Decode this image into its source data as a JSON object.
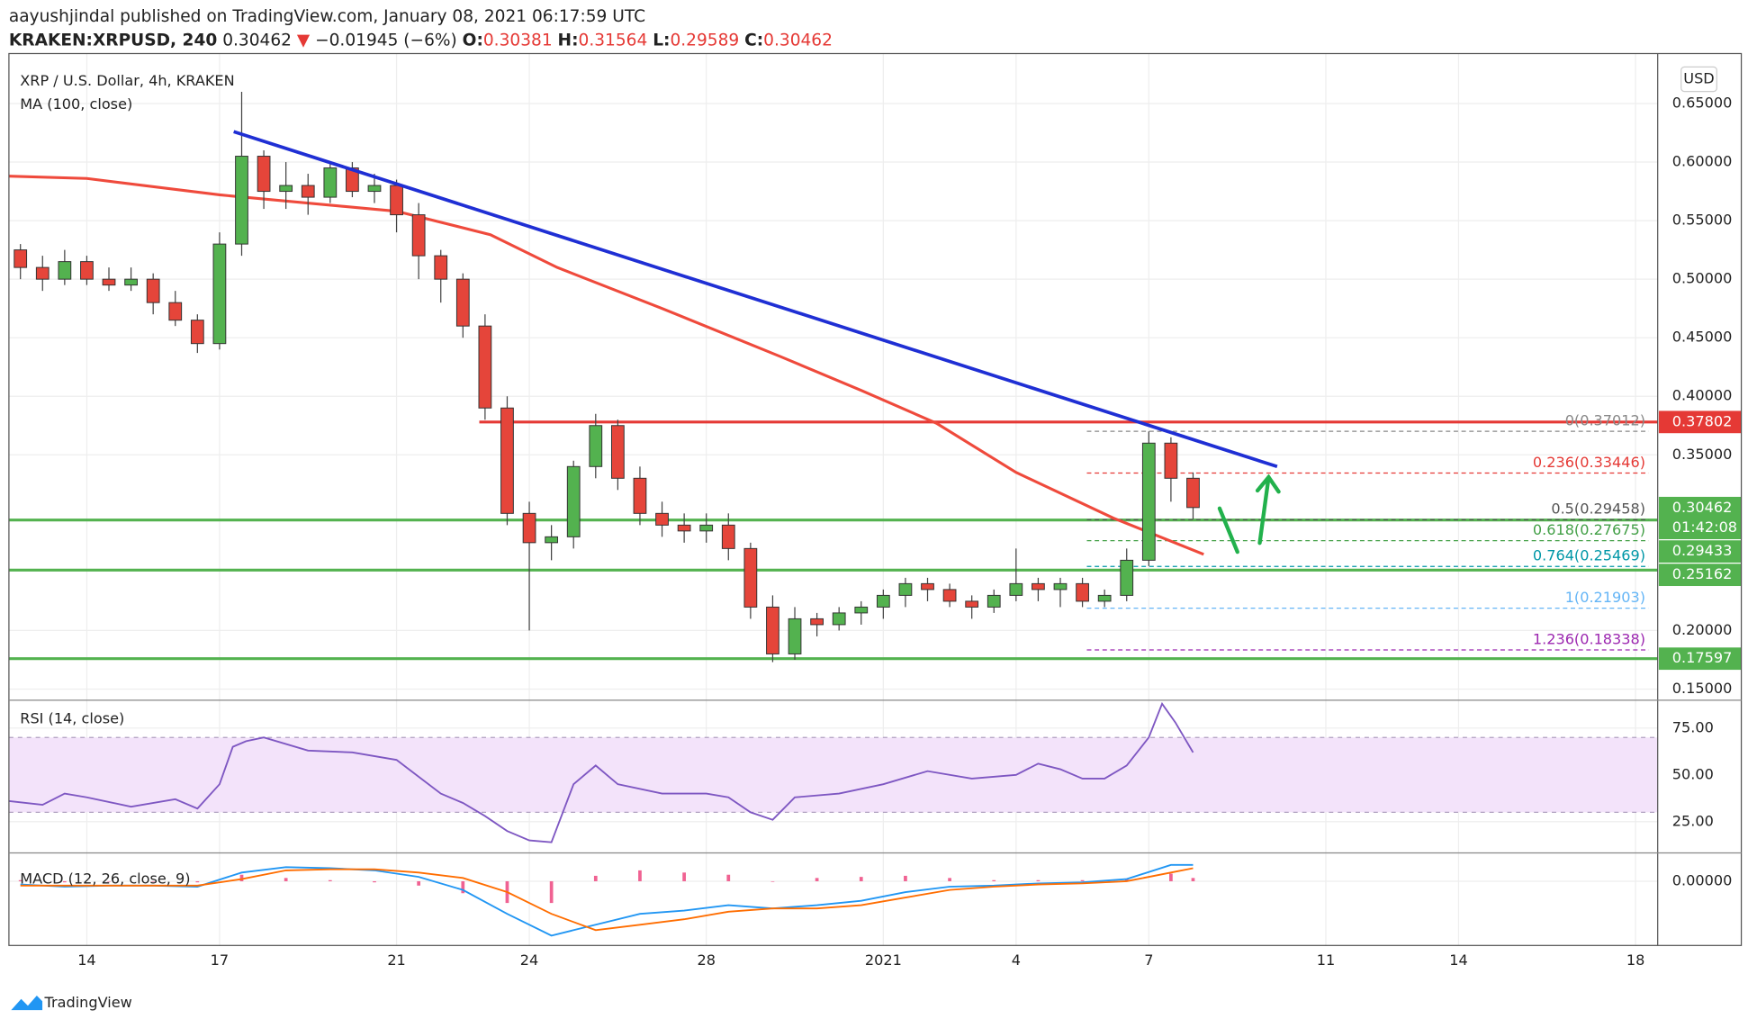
{
  "header": {
    "published": "aayushjindal published on TradingView.com, January 08, 2021 06:17:59 UTC",
    "symbol": "KRAKEN:XRPUSD, 240",
    "last": "0.30462",
    "arrow": "▼",
    "change": "−0.01945 (−6%)",
    "ohlc": [
      {
        "label": "O:",
        "value": "0.30381"
      },
      {
        "label": "H:",
        "value": "0.31564"
      },
      {
        "label": "L:",
        "value": "0.29589"
      },
      {
        "label": "C:",
        "value": "0.30462"
      }
    ]
  },
  "footer": {
    "brand": "TradingView"
  },
  "chart_data": [
    {
      "type": "candlestick",
      "title": "XRP / U.S. Dollar, 4h, KRAKEN",
      "currency": "USD",
      "up_color": "#53b24f",
      "down_color": "#e5453a",
      "grid": true,
      "xlim": [
        12.24,
        49.5
      ],
      "ylim": [
        0.1405,
        0.686
      ],
      "xticks": [
        14,
        17,
        21,
        24,
        28,
        {
          "value": 32,
          "label": "2021"
        },
        {
          "value": 35,
          "label": "4"
        },
        {
          "value": 38,
          "label": "7"
        },
        {
          "value": 42,
          "label": "11"
        },
        {
          "value": 45,
          "label": "14"
        },
        {
          "value": 49,
          "label": "18"
        }
      ],
      "yticks": [
        {
          "value": 0.65,
          "label": "0.65000"
        },
        {
          "value": 0.6,
          "label": "0.60000"
        },
        {
          "value": 0.55,
          "label": "0.55000"
        },
        {
          "value": 0.5,
          "label": "0.50000"
        },
        {
          "value": 0.45,
          "label": "0.45000"
        },
        {
          "value": 0.4,
          "label": "0.40000"
        },
        {
          "value": 0.35,
          "label": "0.35000"
        },
        {
          "value": 0.2,
          "label": "0.20000"
        },
        {
          "value": 0.15,
          "label": "0.15000"
        }
      ],
      "x": [
        12.5,
        13,
        13.5,
        14,
        14.5,
        15,
        15.5,
        16,
        16.5,
        17,
        17.5,
        18,
        18.5,
        19,
        19.5,
        20,
        20.5,
        21,
        21.5,
        22,
        22.5,
        23,
        23.5,
        24,
        24.5,
        25,
        25.5,
        26,
        26.5,
        27,
        27.5,
        28,
        28.5,
        29,
        29.5,
        30,
        30.5,
        31,
        31.5,
        32,
        32.5,
        33,
        33.5,
        34,
        34.5,
        35,
        35.5,
        36,
        36.5,
        37,
        37.5,
        38,
        38.5,
        39
      ],
      "open": [
        0.525,
        0.51,
        0.5,
        0.515,
        0.5,
        0.495,
        0.5,
        0.48,
        0.465,
        0.445,
        0.53,
        0.605,
        0.575,
        0.58,
        0.57,
        0.595,
        0.575,
        0.58,
        0.555,
        0.52,
        0.5,
        0.46,
        0.39,
        0.3,
        0.275,
        0.28,
        0.34,
        0.375,
        0.33,
        0.3,
        0.29,
        0.285,
        0.29,
        0.27,
        0.22,
        0.18,
        0.21,
        0.205,
        0.215,
        0.22,
        0.23,
        0.24,
        0.235,
        0.225,
        0.22,
        0.23,
        0.24,
        0.235,
        0.24,
        0.225,
        0.23,
        0.26,
        0.36,
        0.33
      ],
      "high": [
        0.53,
        0.52,
        0.525,
        0.52,
        0.51,
        0.51,
        0.505,
        0.49,
        0.47,
        0.54,
        0.66,
        0.61,
        0.6,
        0.59,
        0.6,
        0.6,
        0.59,
        0.585,
        0.565,
        0.525,
        0.505,
        0.47,
        0.4,
        0.31,
        0.29,
        0.345,
        0.385,
        0.38,
        0.34,
        0.31,
        0.3,
        0.3,
        0.3,
        0.275,
        0.23,
        0.22,
        0.215,
        0.22,
        0.225,
        0.235,
        0.245,
        0.245,
        0.24,
        0.23,
        0.235,
        0.27,
        0.245,
        0.245,
        0.245,
        0.235,
        0.27,
        0.37,
        0.365,
        0.335
      ],
      "low": [
        0.5,
        0.49,
        0.495,
        0.495,
        0.49,
        0.49,
        0.47,
        0.46,
        0.437,
        0.44,
        0.52,
        0.56,
        0.56,
        0.555,
        0.565,
        0.57,
        0.565,
        0.54,
        0.5,
        0.48,
        0.45,
        0.38,
        0.29,
        0.2,
        0.26,
        0.27,
        0.33,
        0.32,
        0.29,
        0.28,
        0.275,
        0.275,
        0.26,
        0.21,
        0.173,
        0.175,
        0.195,
        0.2,
        0.205,
        0.21,
        0.22,
        0.225,
        0.22,
        0.21,
        0.215,
        0.225,
        0.225,
        0.22,
        0.22,
        0.22,
        0.225,
        0.255,
        0.31,
        0.295
      ],
      "close": [
        0.51,
        0.5,
        0.515,
        0.5,
        0.495,
        0.5,
        0.48,
        0.465,
        0.445,
        0.53,
        0.605,
        0.575,
        0.58,
        0.57,
        0.595,
        0.575,
        0.58,
        0.555,
        0.52,
        0.5,
        0.46,
        0.39,
        0.3,
        0.275,
        0.28,
        0.34,
        0.375,
        0.33,
        0.3,
        0.29,
        0.285,
        0.29,
        0.27,
        0.22,
        0.18,
        0.21,
        0.205,
        0.215,
        0.22,
        0.23,
        0.24,
        0.235,
        0.225,
        0.22,
        0.23,
        0.24,
        0.235,
        0.24,
        0.225,
        0.23,
        0.26,
        0.36,
        0.33,
        0.305
      ],
      "ma": {
        "name": "MA (100, close)",
        "color": "#ef4a3c",
        "x": [
          12.24,
          14,
          17,
          21,
          23.12,
          24.63,
          27,
          29.67,
          31.5,
          33.2,
          35,
          37.2,
          39.24
        ],
        "values": [
          0.588,
          0.586,
          0.572,
          0.558,
          0.538,
          0.51,
          0.475,
          0.434,
          0.405,
          0.377,
          0.335,
          0.296,
          0.265
        ]
      },
      "trendline": {
        "color": "#1f2fd4",
        "x": [
          17.32,
          40.9
        ],
        "values": [
          0.626,
          0.34
        ]
      },
      "levels": [
        {
          "value": 0.37802,
          "label": "0.37802",
          "color": "#e53935",
          "from": 22.87
        },
        {
          "value": 0.30462,
          "label": "0.30462",
          "color": "#53b24f",
          "countdown": "01:42:08"
        },
        {
          "value": 0.29433,
          "label": "0.29433",
          "color": "#53b24f",
          "from": 12.24
        },
        {
          "value": 0.25162,
          "label": "0.25162",
          "color": "#53b24f",
          "from": 12.24
        },
        {
          "value": 0.17597,
          "label": "0.17597",
          "color": "#53b24f",
          "from": 12.24
        }
      ],
      "fib": {
        "from": 36.6,
        "to": 49.3,
        "levels": [
          {
            "value": 0.37012,
            "label": "0(0.37012)",
            "color": "#888888"
          },
          {
            "value": 0.33446,
            "label": "0.236(0.33446)",
            "color": "#e53935"
          },
          {
            "value": 0.29458,
            "label": "0.5(0.29458)",
            "color": "#555555"
          },
          {
            "value": 0.27675,
            "label": "0.618(0.27675)",
            "color": "#43a047"
          },
          {
            "value": 0.25469,
            "label": "0.764(0.25469)",
            "color": "#0097a7"
          },
          {
            "value": 0.21903,
            "label": "1(0.21903)",
            "color": "#64b5f6"
          },
          {
            "value": 0.18338,
            "label": "1.236(0.18338)",
            "color": "#9c27b0"
          }
        ]
      }
    },
    {
      "type": "line",
      "title": "RSI (14, close)",
      "color": "#7e57c2",
      "ylim": [
        8.3,
        89.9
      ],
      "yticks": [
        {
          "value": 75,
          "label": "75.00"
        },
        {
          "value": 50,
          "label": "50.00"
        },
        {
          "value": 25,
          "label": "25.00"
        }
      ],
      "band": [
        30,
        70
      ],
      "x": [
        12.25,
        13,
        13.5,
        14,
        15,
        16,
        16.5,
        17,
        17.3,
        17.6,
        18,
        19,
        20,
        21,
        21.5,
        22,
        22.5,
        23,
        23.5,
        24,
        24.5,
        25,
        25.5,
        26,
        27,
        28,
        28.5,
        29,
        29.5,
        30,
        31,
        32,
        33,
        34,
        35,
        35.5,
        36,
        36.5,
        37,
        37.5,
        38,
        38.3,
        38.6,
        39
      ],
      "values": [
        36,
        34,
        40,
        38,
        33,
        37,
        32,
        45,
        65,
        68,
        70,
        63,
        62,
        58,
        49,
        40,
        35,
        28,
        20,
        15,
        14,
        45,
        55,
        45,
        40,
        40,
        38,
        30,
        26,
        38,
        40,
        45,
        52,
        48,
        50,
        56,
        53,
        48,
        48,
        55,
        70,
        88,
        78,
        62
      ]
    },
    {
      "type": "macd",
      "title": "MACD (12, 26, close, 9)",
      "ylim": [
        -0.056,
        0.024
      ],
      "yticks": [
        {
          "value": 0,
          "label": "0.00000"
        }
      ],
      "x": [
        12.5,
        13.5,
        14.5,
        15.5,
        16.5,
        17.5,
        18.5,
        19.5,
        20.5,
        21.5,
        22.5,
        23.5,
        24.5,
        25.5,
        26.5,
        27.5,
        28.5,
        29.5,
        30.5,
        31.5,
        32.5,
        33.5,
        34.5,
        35.5,
        36.5,
        37.5,
        38.5,
        39
      ],
      "series": [
        {
          "color": "#2196f3",
          "values": [
            -0.003,
            -0.005,
            -0.004,
            -0.004,
            -0.005,
            0.008,
            0.013,
            0.012,
            0.01,
            0.004,
            -0.008,
            -0.03,
            -0.05,
            -0.04,
            -0.03,
            -0.027,
            -0.022,
            -0.025,
            -0.022,
            -0.018,
            -0.01,
            -0.005,
            -0.004,
            -0.002,
            -0.001,
            0.002,
            0.015,
            0.015
          ]
        },
        {
          "color": "#ff6d00",
          "values": [
            -0.004,
            -0.004,
            -0.004,
            -0.004,
            -0.004,
            0.002,
            0.01,
            0.011,
            0.011,
            0.008,
            0.003,
            -0.01,
            -0.03,
            -0.045,
            -0.04,
            -0.035,
            -0.028,
            -0.025,
            -0.025,
            -0.022,
            -0.015,
            -0.008,
            -0.005,
            -0.003,
            -0.002,
            0,
            0.008,
            0.012
          ]
        }
      ],
      "histogram": {
        "color": "#f06292",
        "values": [
          0.001,
          -0.001,
          0,
          0,
          -0.001,
          0.006,
          0.003,
          0.001,
          -0.001,
          -0.004,
          -0.011,
          -0.02,
          -0.02,
          0.005,
          0.01,
          0.008,
          0.006,
          0,
          0.003,
          0.004,
          0.005,
          0.003,
          0.001,
          0.001,
          0.001,
          0.002,
          0.007,
          0.003
        ]
      }
    }
  ]
}
